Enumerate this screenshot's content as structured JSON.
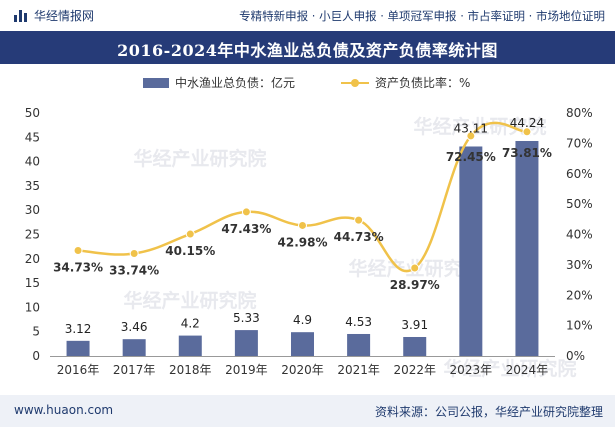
{
  "header": {
    "brand": "华经情报网",
    "tagline": "专精特新申报 · 小巨人申报 · 单项冠军申报 · 市占率证明 · 市场地位证明"
  },
  "title": "2016-2024年中水渔业总负债及资产负债率统计图",
  "watermark": "华经产业研究院",
  "footer": {
    "url": "www.huaon.com",
    "source": "资料来源：公司公报，华经产业研究院整理"
  },
  "colors": {
    "bar": "#5a6b9c",
    "line": "#f0c24a",
    "title_bg": "#263b78"
  },
  "chart_data": {
    "type": "bar",
    "categories": [
      "2016年",
      "2017年",
      "2018年",
      "2019年",
      "2020年",
      "2021年",
      "2022年",
      "2023年",
      "2024年"
    ],
    "series": [
      {
        "name": "中水渔业总负债：亿元",
        "type": "bar",
        "axis": "left",
        "values": [
          3.12,
          3.46,
          4.2,
          5.33,
          4.9,
          4.53,
          3.91,
          43.11,
          44.24
        ],
        "labels": [
          "3.12",
          "3.46",
          "4.2",
          "5.33",
          "4.9",
          "4.53",
          "3.91",
          "43.11",
          "44.24"
        ]
      },
      {
        "name": "资产负债比率：%",
        "type": "line",
        "axis": "right",
        "values": [
          34.73,
          33.74,
          40.15,
          47.43,
          42.98,
          44.73,
          28.97,
          72.45,
          73.81
        ],
        "labels": [
          "34.73%",
          "33.74%",
          "40.15%",
          "47.43%",
          "42.98%",
          "44.73%",
          "28.97%",
          "72.45%",
          "73.81%"
        ]
      }
    ],
    "y_left": {
      "min": 0,
      "max": 50,
      "ticks": [
        "0",
        "5",
        "10",
        "15",
        "20",
        "25",
        "30",
        "35",
        "40",
        "45",
        "50"
      ]
    },
    "y_right": {
      "min": 0,
      "max": 80,
      "ticks": [
        "0%",
        "10%",
        "20%",
        "30%",
        "40%",
        "50%",
        "60%",
        "70%",
        "80%"
      ]
    },
    "grid": false,
    "legend_position": "top"
  }
}
